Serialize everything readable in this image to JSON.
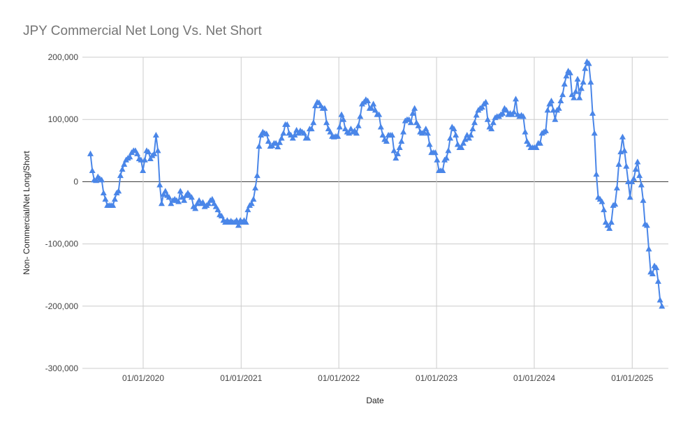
{
  "chart_data": {
    "type": "line",
    "title": "JPY Commercial Net Long Vs. Net Short",
    "xlabel": "Date",
    "ylabel": "Non- Commercial/Net Long/Short",
    "color": "#4a86e8",
    "marker": "triangle",
    "grid": true,
    "xlim": [
      "2019-05-19",
      "2025-05-16"
    ],
    "xticks": [
      {
        "value": "2020-01-01",
        "label": "01/01/2020"
      },
      {
        "value": "2021-01-01",
        "label": "01/01/2021"
      },
      {
        "value": "2022-01-01",
        "label": "01/01/2022"
      },
      {
        "value": "2023-01-01",
        "label": "01/01/2023"
      },
      {
        "value": "2024-01-01",
        "label": "01/01/2024"
      },
      {
        "value": "2025-01-01",
        "label": "01/01/2025"
      }
    ],
    "ylim": [
      -300000,
      200000
    ],
    "yticks": [
      {
        "value": -300000,
        "label": "-300,000"
      },
      {
        "value": -200000,
        "label": "-200,000"
      },
      {
        "value": -100000,
        "label": "-100,000"
      },
      0,
      {
        "value": 100000,
        "label": "100,000"
      },
      {
        "value": 200000,
        "label": "200,000"
      }
    ],
    "x": [
      "2019-06-18",
      "2019-06-25",
      "2019-07-02",
      "2019-07-09",
      "2019-07-16",
      "2019-07-23",
      "2019-07-30",
      "2019-08-06",
      "2019-08-13",
      "2019-08-20",
      "2019-08-27",
      "2019-09-03",
      "2019-09-10",
      "2019-09-17",
      "2019-09-24",
      "2019-10-01",
      "2019-10-08",
      "2019-10-15",
      "2019-10-22",
      "2019-10-29",
      "2019-11-05",
      "2019-11-12",
      "2019-11-19",
      "2019-11-26",
      "2019-12-03",
      "2019-12-10",
      "2019-12-17",
      "2019-12-24",
      "2019-12-31",
      "2020-01-07",
      "2020-01-14",
      "2020-01-21",
      "2020-01-28",
      "2020-02-04",
      "2020-02-11",
      "2020-02-18",
      "2020-02-25",
      "2020-03-03",
      "2020-03-10",
      "2020-03-17",
      "2020-03-24",
      "2020-03-31",
      "2020-04-07",
      "2020-04-14",
      "2020-04-21",
      "2020-04-28",
      "2020-05-05",
      "2020-05-12",
      "2020-05-19",
      "2020-05-26",
      "2020-06-02",
      "2020-06-09",
      "2020-06-16",
      "2020-06-23",
      "2020-06-30",
      "2020-07-07",
      "2020-07-14",
      "2020-07-21",
      "2020-07-28",
      "2020-08-04",
      "2020-08-11",
      "2020-08-18",
      "2020-08-25",
      "2020-09-01",
      "2020-09-08",
      "2020-09-15",
      "2020-09-22",
      "2020-09-29",
      "2020-10-06",
      "2020-10-13",
      "2020-10-20",
      "2020-10-27",
      "2020-11-03",
      "2020-11-10",
      "2020-11-17",
      "2020-11-24",
      "2020-12-01",
      "2020-12-08",
      "2020-12-15",
      "2020-12-22",
      "2020-12-29",
      "2021-01-05",
      "2021-01-12",
      "2021-01-19",
      "2021-01-26",
      "2021-02-02",
      "2021-02-09",
      "2021-02-16",
      "2021-02-23",
      "2021-03-02",
      "2021-03-09",
      "2021-03-16",
      "2021-03-23",
      "2021-03-30",
      "2021-04-06",
      "2021-04-13",
      "2021-04-20",
      "2021-04-27",
      "2021-05-04",
      "2021-05-11",
      "2021-05-18",
      "2021-05-25",
      "2021-06-01",
      "2021-06-08",
      "2021-06-15",
      "2021-06-22",
      "2021-06-29",
      "2021-07-06",
      "2021-07-13",
      "2021-07-20",
      "2021-07-27",
      "2021-08-03",
      "2021-08-10",
      "2021-08-17",
      "2021-08-24",
      "2021-08-31",
      "2021-09-07",
      "2021-09-14",
      "2021-09-21",
      "2021-09-28",
      "2021-10-05",
      "2021-10-12",
      "2021-10-19",
      "2021-10-26",
      "2021-11-02",
      "2021-11-09",
      "2021-11-16",
      "2021-11-23",
      "2021-11-30",
      "2021-12-07",
      "2021-12-14",
      "2021-12-21",
      "2021-12-28",
      "2022-01-04",
      "2022-01-11",
      "2022-01-18",
      "2022-01-25",
      "2022-02-01",
      "2022-02-08",
      "2022-02-15",
      "2022-02-22",
      "2022-03-01",
      "2022-03-08",
      "2022-03-15",
      "2022-03-22",
      "2022-03-29",
      "2022-04-05",
      "2022-04-12",
      "2022-04-19",
      "2022-04-26",
      "2022-05-03",
      "2022-05-10",
      "2022-05-17",
      "2022-05-24",
      "2022-05-31",
      "2022-06-07",
      "2022-06-14",
      "2022-06-21",
      "2022-06-28",
      "2022-07-05",
      "2022-07-12",
      "2022-07-19",
      "2022-07-26",
      "2022-08-02",
      "2022-08-09",
      "2022-08-16",
      "2022-08-23",
      "2022-08-30",
      "2022-09-06",
      "2022-09-13",
      "2022-09-20",
      "2022-09-27",
      "2022-10-04",
      "2022-10-11",
      "2022-10-18",
      "2022-10-25",
      "2022-11-01",
      "2022-11-08",
      "2022-11-15",
      "2022-11-22",
      "2022-11-29",
      "2022-12-06",
      "2022-12-13",
      "2022-12-20",
      "2022-12-27",
      "2023-01-03",
      "2023-01-10",
      "2023-01-17",
      "2023-01-24",
      "2023-01-31",
      "2023-02-07",
      "2023-02-14",
      "2023-02-21",
      "2023-02-28",
      "2023-03-07",
      "2023-03-14",
      "2023-03-21",
      "2023-03-28",
      "2023-04-04",
      "2023-04-11",
      "2023-04-18",
      "2023-04-25",
      "2023-05-02",
      "2023-05-09",
      "2023-05-16",
      "2023-05-23",
      "2023-05-30",
      "2023-06-06",
      "2023-06-13",
      "2023-06-20",
      "2023-06-27",
      "2023-07-04",
      "2023-07-11",
      "2023-07-18",
      "2023-07-25",
      "2023-08-01",
      "2023-08-08",
      "2023-08-15",
      "2023-08-22",
      "2023-08-29",
      "2023-09-05",
      "2023-09-12",
      "2023-09-19",
      "2023-09-26",
      "2023-10-03",
      "2023-10-10",
      "2023-10-17",
      "2023-10-24",
      "2023-10-31",
      "2023-11-07",
      "2023-11-14",
      "2023-11-21",
      "2023-11-28",
      "2023-12-05",
      "2023-12-12",
      "2023-12-19",
      "2023-12-26",
      "2024-01-02",
      "2024-01-09",
      "2024-01-16",
      "2024-01-23",
      "2024-01-30",
      "2024-02-06",
      "2024-02-13",
      "2024-02-20",
      "2024-02-27",
      "2024-03-05",
      "2024-03-12",
      "2024-03-19",
      "2024-03-26",
      "2024-04-02",
      "2024-04-09",
      "2024-04-16",
      "2024-04-23",
      "2024-04-30",
      "2024-05-07",
      "2024-05-14",
      "2024-05-21",
      "2024-05-28",
      "2024-06-04",
      "2024-06-11",
      "2024-06-18",
      "2024-06-25",
      "2024-07-02",
      "2024-07-09",
      "2024-07-16",
      "2024-07-23",
      "2024-07-30",
      "2024-08-06",
      "2024-08-13",
      "2024-08-20",
      "2024-08-27",
      "2024-09-03",
      "2024-09-10",
      "2024-09-17",
      "2024-09-24",
      "2024-10-01",
      "2024-10-08",
      "2024-10-15",
      "2024-10-22",
      "2024-10-29",
      "2024-11-05",
      "2024-11-12",
      "2024-11-19",
      "2024-11-26",
      "2024-12-03",
      "2024-12-10",
      "2024-12-17",
      "2024-12-24",
      "2024-12-31",
      "2025-01-07",
      "2025-01-14",
      "2025-01-21",
      "2025-01-28",
      "2025-02-04",
      "2025-02-11",
      "2025-02-18",
      "2025-02-25",
      "2025-03-04",
      "2025-03-11",
      "2025-03-18",
      "2025-03-25",
      "2025-04-01",
      "2025-04-08",
      "2025-04-15",
      "2025-04-22"
    ],
    "values": [
      45000,
      18000,
      3000,
      2000,
      8000,
      5000,
      3000,
      -18000,
      -28000,
      -38000,
      -38000,
      -38000,
      -38000,
      -28000,
      -18000,
      -15000,
      10000,
      20000,
      28000,
      35000,
      38000,
      40000,
      47000,
      50000,
      50000,
      45000,
      37000,
      35000,
      18000,
      35000,
      50000,
      48000,
      37000,
      42000,
      45000,
      75000,
      50000,
      -5000,
      -35000,
      -20000,
      -15000,
      -22000,
      -25000,
      -35000,
      -30000,
      -28000,
      -30000,
      -32000,
      -15000,
      -25000,
      -30000,
      -22000,
      -18000,
      -22000,
      -25000,
      -40000,
      -43000,
      -35000,
      -30000,
      -35000,
      -33000,
      -40000,
      -38000,
      -35000,
      -30000,
      -28000,
      -35000,
      -40000,
      -45000,
      -53000,
      -55000,
      -62000,
      -65000,
      -62000,
      -65000,
      -63000,
      -65000,
      -65000,
      -62000,
      -70000,
      -62000,
      -65000,
      -62000,
      -65000,
      -45000,
      -38000,
      -35000,
      -28000,
      -10000,
      10000,
      57000,
      75000,
      80000,
      78000,
      77000,
      65000,
      57000,
      58000,
      62000,
      62000,
      56000,
      63000,
      70000,
      78000,
      92000,
      92000,
      78000,
      75000,
      70000,
      75000,
      83000,
      78000,
      82000,
      80000,
      78000,
      70000,
      70000,
      85000,
      85000,
      95000,
      122000,
      128000,
      127000,
      122000,
      118000,
      118000,
      95000,
      85000,
      80000,
      73000,
      72000,
      73000,
      73000,
      88000,
      108000,
      100000,
      85000,
      80000,
      78000,
      85000,
      80000,
      82000,
      78000,
      90000,
      105000,
      125000,
      128000,
      132000,
      130000,
      118000,
      118000,
      125000,
      115000,
      108000,
      108000,
      88000,
      75000,
      68000,
      65000,
      75000,
      75000,
      75000,
      50000,
      38000,
      45000,
      55000,
      65000,
      80000,
      98000,
      100000,
      100000,
      95000,
      110000,
      118000,
      95000,
      90000,
      80000,
      78000,
      80000,
      85000,
      78000,
      60000,
      47000,
      47000,
      47000,
      35000,
      18000,
      18000,
      18000,
      35000,
      38000,
      50000,
      70000,
      88000,
      85000,
      75000,
      60000,
      55000,
      55000,
      62000,
      68000,
      75000,
      70000,
      75000,
      85000,
      95000,
      107000,
      115000,
      118000,
      120000,
      125000,
      128000,
      100000,
      88000,
      85000,
      95000,
      103000,
      105000,
      105000,
      108000,
      110000,
      118000,
      115000,
      108000,
      110000,
      108000,
      112000,
      133000,
      108000,
      105000,
      107000,
      105000,
      80000,
      65000,
      60000,
      55000,
      55000,
      55000,
      55000,
      62000,
      62000,
      78000,
      80000,
      82000,
      115000,
      125000,
      130000,
      115000,
      100000,
      115000,
      118000,
      130000,
      140000,
      157000,
      170000,
      178000,
      175000,
      140000,
      135000,
      145000,
      165000,
      135000,
      150000,
      160000,
      182000,
      193000,
      190000,
      160000,
      110000,
      78000,
      12000,
      -25000,
      -28000,
      -32000,
      -45000,
      -65000,
      -70000,
      -75000,
      -65000,
      -38000,
      -36000,
      -10000,
      28000,
      48000,
      72000,
      50000,
      25000,
      0,
      -25000,
      0,
      5000,
      20000,
      32000,
      10000,
      -5000,
      -30000,
      -68000,
      -70000,
      -108000,
      -145000,
      -148000,
      -135000,
      -138000,
      -160000,
      -190000,
      -200000
    ]
  }
}
